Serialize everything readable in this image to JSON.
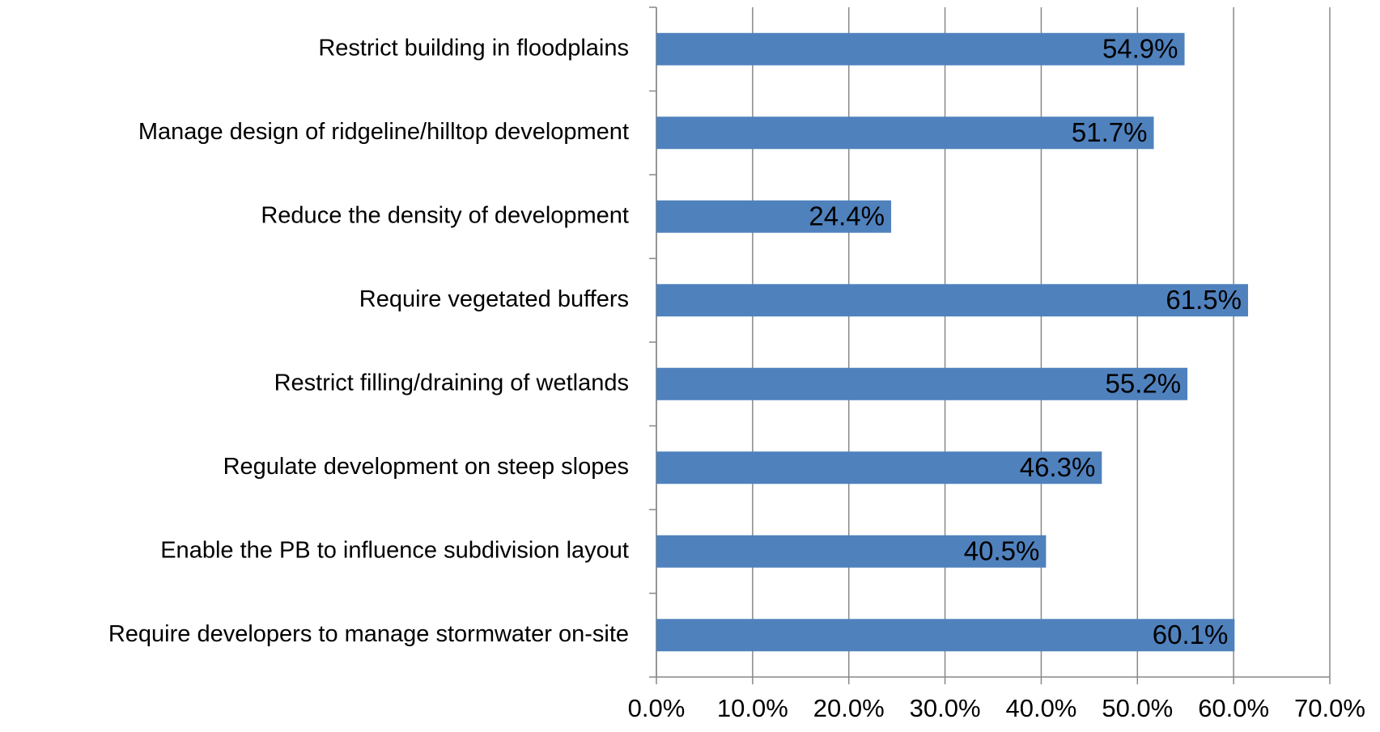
{
  "chart_data": {
    "type": "hbar",
    "categories": [
      "Restrict building in floodplains",
      "Manage design of ridgeline/hilltop development",
      "Reduce the density of development",
      "Require vegetated buffers",
      "Restrict filling/draining of wetlands",
      "Regulate development on steep slopes",
      "Enable the PB to influence subdivision layout",
      "Require developers to manage stormwater on-site"
    ],
    "values": [
      54.9,
      51.7,
      24.4,
      61.5,
      55.2,
      46.3,
      40.5,
      60.1
    ],
    "value_labels": [
      "54.9%",
      "51.7%",
      "24.4%",
      "61.5%",
      "55.2%",
      "46.3%",
      "40.5%",
      "60.1%"
    ],
    "color": "#4f81bd",
    "xlim": [
      0,
      70
    ],
    "xticks": [
      {
        "value": 0,
        "label": "0.0%"
      },
      {
        "value": 10,
        "label": "10.0%"
      },
      {
        "value": 20,
        "label": "20.0%"
      },
      {
        "value": 30,
        "label": "30.0%"
      },
      {
        "value": 40,
        "label": "40.0%"
      },
      {
        "value": 50,
        "label": "50.0%"
      },
      {
        "value": 60,
        "label": "60.0%"
      },
      {
        "value": 70,
        "label": "70.0%"
      }
    ],
    "grid": true
  }
}
